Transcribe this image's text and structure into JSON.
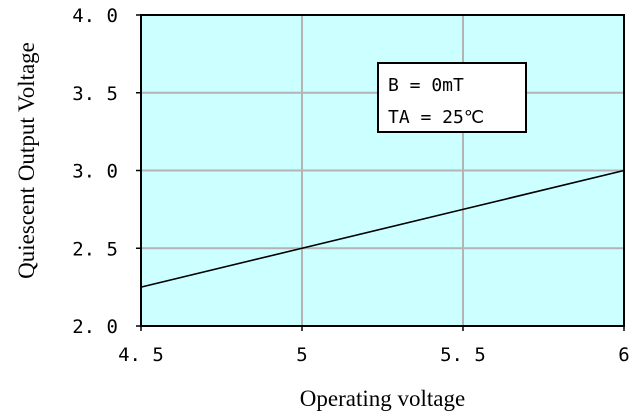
{
  "chart_data": {
    "type": "line",
    "xlabel": "Operating voltage",
    "ylabel": "Quiescent Output Voltage",
    "xlim": [
      4.5,
      6.0
    ],
    "ylim": [
      2.0,
      4.0
    ],
    "x_ticks": [
      4.5,
      5.0,
      5.5,
      6.0
    ],
    "x_tick_labels": [
      "4. 5",
      "5",
      "5. 5",
      "6"
    ],
    "y_ticks": [
      2.0,
      2.5,
      3.0,
      3.5,
      4.0
    ],
    "y_tick_labels": [
      "2. 0",
      "2. 5",
      "3. 0",
      "3. 5",
      "4. 0"
    ],
    "grid": true,
    "plot_background": "#ccffff",
    "line_color": "#000000",
    "series": [
      {
        "x": [
          4.5,
          5.0,
          5.5,
          6.0
        ],
        "y": [
          2.25,
          2.5,
          2.75,
          3.0
        ]
      }
    ],
    "annotation": {
      "lines": [
        "B = 0mT",
        "TA = 25℃"
      ]
    }
  }
}
